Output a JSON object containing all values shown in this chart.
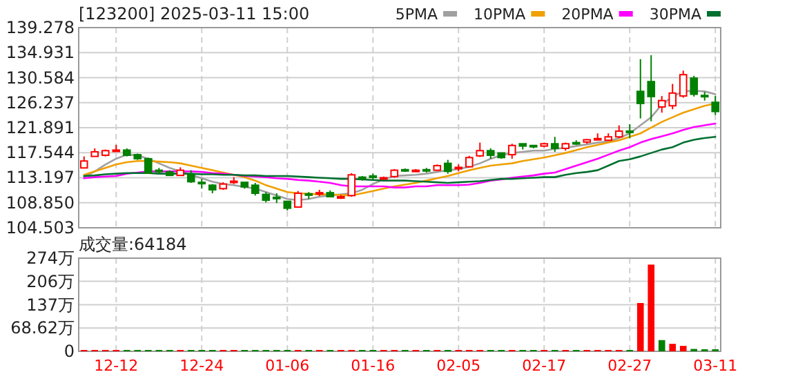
{
  "chart_data": [
    {
      "type": "candlestick",
      "title": "[123200] 2025-03-11 15:00",
      "legend": "top right",
      "tick_labels": "y",
      "grid": true,
      "categories": [
        null,
        null,
        null,
        null,
        null,
        null,
        null,
        null,
        null,
        null,
        null,
        null,
        null,
        null,
        null,
        null,
        null,
        null,
        null,
        null,
        null,
        null,
        null,
        null,
        null,
        null,
        null,
        null,
        null,
        null,
        null,
        null,
        null,
        null,
        null,
        null,
        null,
        null,
        null,
        null,
        null,
        null,
        null,
        null,
        null,
        null,
        null,
        null,
        null,
        null,
        null,
        null,
        null,
        null,
        null,
        null,
        null,
        null,
        null,
        null
      ],
      "ohlc": [
        [
          114.9,
          116.9,
          114.9,
          116.1
        ],
        [
          116.9,
          118.3,
          116.9,
          117.7
        ],
        [
          117.1,
          118.1,
          116.9,
          117.9
        ],
        [
          117.8,
          118.9,
          117.8,
          118.0
        ],
        [
          118.0,
          118.3,
          116.9,
          117.1
        ],
        [
          117.2,
          117.4,
          116.3,
          116.5
        ],
        [
          116.5,
          116.7,
          113.9,
          114.0
        ],
        [
          114.5,
          114.9,
          113.9,
          114.3
        ],
        [
          114.2,
          114.5,
          113.5,
          113.6
        ],
        [
          113.6,
          115.0,
          113.5,
          114.5
        ],
        [
          113.7,
          114.5,
          112.3,
          112.5
        ],
        [
          112.4,
          113.0,
          111.3,
          112.3
        ],
        [
          111.9,
          112.1,
          110.5,
          111.1
        ],
        [
          111.3,
          112.4,
          111.1,
          112.1
        ],
        [
          112.4,
          113.3,
          112.1,
          112.6
        ],
        [
          112.4,
          112.4,
          111.3,
          111.6
        ],
        [
          111.9,
          112.3,
          110.1,
          110.5
        ],
        [
          110.3,
          110.7,
          108.9,
          109.3
        ],
        [
          109.8,
          110.5,
          108.8,
          109.6
        ],
        [
          109.1,
          109.1,
          107.5,
          107.9
        ],
        [
          108.1,
          110.9,
          108.1,
          110.5
        ],
        [
          110.4,
          110.7,
          109.5,
          110.3
        ],
        [
          110.5,
          111.1,
          110.0,
          110.6
        ],
        [
          110.6,
          111.0,
          109.8,
          109.9
        ],
        [
          109.8,
          110.2,
          109.5,
          109.9
        ],
        [
          110.1,
          114.0,
          109.9,
          113.7
        ],
        [
          113.3,
          113.5,
          112.7,
          113.2
        ],
        [
          113.5,
          113.9,
          112.7,
          113.4
        ],
        [
          113.1,
          113.4,
          112.9,
          113.2
        ],
        [
          113.4,
          114.7,
          113.2,
          114.5
        ],
        [
          114.6,
          114.8,
          114.2,
          114.5
        ],
        [
          114.4,
          114.7,
          114.2,
          114.5
        ],
        [
          114.6,
          114.9,
          114.1,
          114.5
        ],
        [
          114.5,
          115.5,
          114.4,
          115.3
        ],
        [
          115.7,
          116.3,
          113.9,
          114.3
        ],
        [
          114.9,
          115.5,
          114.3,
          115.0
        ],
        [
          115.1,
          117.0,
          115.0,
          116.7
        ],
        [
          117.0,
          119.3,
          116.8,
          117.9
        ],
        [
          117.9,
          118.3,
          116.5,
          117.1
        ],
        [
          117.5,
          117.5,
          116.5,
          116.7
        ],
        [
          117.2,
          119.1,
          116.5,
          118.8
        ],
        [
          119.1,
          119.1,
          118.1,
          118.7
        ],
        [
          118.8,
          118.9,
          118.3,
          118.7
        ],
        [
          118.7,
          119.3,
          118.5,
          119.1
        ],
        [
          119.1,
          120.3,
          117.7,
          118.3
        ],
        [
          118.3,
          119.3,
          117.9,
          119.1
        ],
        [
          119.3,
          119.7,
          118.9,
          119.2
        ],
        [
          119.4,
          119.9,
          119.1,
          119.8
        ],
        [
          119.9,
          120.9,
          119.9,
          120.0
        ],
        [
          119.7,
          120.9,
          119.7,
          120.3
        ],
        [
          120.3,
          122.3,
          120.1,
          121.3
        ],
        [
          121.3,
          122.5,
          120.1,
          121.2
        ],
        [
          128.2,
          133.8,
          123.5,
          126.1
        ],
        [
          129.9,
          134.5,
          123.0,
          127.3
        ],
        [
          125.5,
          127.4,
          124.5,
          126.6
        ],
        [
          125.7,
          129.5,
          125.1,
          127.9
        ],
        [
          127.4,
          131.8,
          127.1,
          131.1
        ],
        [
          130.5,
          130.9,
          127.3,
          127.7
        ],
        [
          127.5,
          128.1,
          126.6,
          127.4
        ],
        [
          126.3,
          127.4,
          124.1,
          124.7
        ]
      ],
      "colors": [
        "#ff0000",
        "#ff0000",
        "#ff0000",
        "#ff0000",
        "#008000",
        "#008000",
        "#008000",
        "#008000",
        "#008000",
        "#ff0000",
        "#008000",
        "#008000",
        "#008000",
        "#ff0000",
        "#ff0000",
        "#008000",
        "#008000",
        "#008000",
        "#008000",
        "#008000",
        "#ff0000",
        "#008000",
        "#ff0000",
        "#008000",
        "#ff0000",
        "#ff0000",
        "#008000",
        "#008000",
        "#ff0000",
        "#ff0000",
        "#008000",
        "#ff0000",
        "#008000",
        "#ff0000",
        "#008000",
        "#ff0000",
        "#ff0000",
        "#ff0000",
        "#008000",
        "#008000",
        "#ff0000",
        "#008000",
        "#008000",
        "#ff0000",
        "#008000",
        "#ff0000",
        "#008000",
        "#ff0000",
        "#ff0000",
        "#ff0000",
        "#ff0000",
        "#008000",
        "#008000",
        "#008000",
        "#ff0000",
        "#ff0000",
        "#ff0000",
        "#008000",
        "#008000",
        "#008000"
      ],
      "series": [
        {
          "name": "5PMA",
          "type": "line",
          "color": "#a0a0a0",
          "values": [
            113.3,
            114.3,
            115.5,
            116.5,
            117.2,
            117.1,
            116.5,
            115.7,
            114.9,
            114.3,
            113.7,
            113.1,
            112.5,
            112.1,
            111.9,
            111.6,
            111.3,
            110.7,
            110.1,
            109.5,
            109.3,
            109.5,
            109.9,
            110.1,
            110.3,
            110.5,
            111.1,
            112.1,
            112.9,
            113.5,
            113.6,
            113.7,
            113.9,
            114.2,
            114.5,
            114.7,
            115.1,
            115.7,
            116.5,
            117.1,
            117.5,
            117.7,
            117.9,
            117.9,
            118.2,
            118.4,
            118.7,
            119.0,
            119.3,
            119.5,
            120.1,
            120.9,
            122.3,
            123.7,
            125.9,
            127.3,
            128.2,
            128.3,
            128.2,
            127.7
          ]
        },
        {
          "name": "10PMA",
          "type": "line",
          "color": "#f0a000",
          "values": [
            113.7,
            114.3,
            114.9,
            115.5,
            115.9,
            116.1,
            116.1,
            116.0,
            115.9,
            115.7,
            115.3,
            114.9,
            114.5,
            114.1,
            113.7,
            113.3,
            112.7,
            111.9,
            111.3,
            110.7,
            110.5,
            110.4,
            110.3,
            110.3,
            110.2,
            110.1,
            110.5,
            110.9,
            111.3,
            111.7,
            112.0,
            112.3,
            112.7,
            113.1,
            113.5,
            114.0,
            114.5,
            114.9,
            115.3,
            115.5,
            115.7,
            116.1,
            116.4,
            116.7,
            117.1,
            117.5,
            118.0,
            118.5,
            118.9,
            119.3,
            119.7,
            120.3,
            120.9,
            121.9,
            122.9,
            123.7,
            124.5,
            125.1,
            125.7,
            126.1
          ]
        },
        {
          "name": "20PMA",
          "type": "line",
          "color": "#ff00ff",
          "values": [
            113.1,
            113.3,
            113.4,
            113.5,
            113.9,
            114.1,
            114.3,
            114.3,
            114.3,
            114.3,
            114.3,
            114.2,
            114.0,
            113.9,
            113.7,
            113.5,
            113.4,
            113.3,
            113.1,
            113.0,
            112.8,
            112.7,
            112.5,
            112.3,
            111.9,
            111.7,
            111.7,
            111.7,
            111.7,
            111.5,
            111.5,
            111.7,
            111.7,
            111.9,
            111.9,
            111.9,
            112.0,
            112.3,
            112.7,
            112.9,
            113.2,
            113.4,
            113.6,
            113.9,
            114.1,
            114.7,
            115.3,
            115.9,
            116.5,
            117.2,
            117.9,
            118.5,
            119.3,
            119.9,
            120.4,
            120.9,
            121.5,
            122.0,
            122.3,
            122.6
          ]
        },
        {
          "name": "30PMA",
          "type": "line",
          "color": "#007030",
          "values": [
            113.5,
            113.6,
            113.8,
            113.9,
            114.0,
            114.0,
            114.0,
            113.9,
            113.9,
            113.9,
            113.9,
            113.8,
            113.8,
            113.7,
            113.7,
            113.6,
            113.6,
            113.5,
            113.5,
            113.5,
            113.4,
            113.3,
            113.2,
            113.1,
            113.0,
            113.0,
            112.9,
            112.8,
            112.7,
            112.7,
            112.7,
            112.6,
            112.5,
            112.4,
            112.3,
            112.4,
            112.5,
            112.6,
            112.8,
            113.0,
            113.0,
            113.1,
            113.2,
            113.3,
            113.3,
            113.7,
            114.0,
            114.2,
            114.5,
            115.3,
            116.1,
            116.4,
            116.9,
            117.5,
            118.1,
            118.5,
            119.3,
            119.8,
            120.1,
            120.3
          ]
        }
      ],
      "ylim": [
        104.503,
        139.278
      ],
      "yticks": [
        104.503,
        {
          "value": 108.85,
          "label": "108.850"
        },
        113.197,
        117.544,
        121.891,
        126.237,
        130.584,
        134.931,
        139.278
      ]
    },
    {
      "type": "bar",
      "title": "成交量:64184",
      "grid": true,
      "categories": [
        null,
        null,
        null,
        "12-12",
        null,
        null,
        null,
        null,
        null,
        null,
        null,
        "12-24",
        null,
        null,
        null,
        null,
        null,
        null,
        null,
        "01-06",
        null,
        null,
        null,
        null,
        null,
        null,
        null,
        "01-16",
        null,
        null,
        null,
        null,
        null,
        null,
        null,
        "02-05",
        null,
        null,
        null,
        null,
        null,
        null,
        null,
        "02-17",
        null,
        null,
        null,
        null,
        null,
        null,
        null,
        "02-27",
        null,
        null,
        null,
        null,
        null,
        null,
        null,
        "03-11"
      ],
      "values": [
        4,
        4,
        4,
        4,
        4,
        4,
        4,
        4,
        4,
        4,
        4,
        4,
        4,
        4,
        4,
        4,
        4,
        4,
        4,
        4,
        4,
        4,
        4,
        4,
        4,
        4,
        4,
        4,
        4,
        4,
        4,
        4,
        4,
        4,
        4,
        4,
        4,
        4,
        4,
        4,
        4,
        4,
        4,
        4,
        4,
        4,
        4,
        4,
        4,
        4,
        4,
        4,
        142,
        255,
        33,
        22,
        16,
        7,
        6,
        6
      ],
      "colors": [
        "#ff0000",
        "#ff0000",
        "#ff0000",
        "#ff0000",
        "#008000",
        "#008000",
        "#008000",
        "#008000",
        "#008000",
        "#ff0000",
        "#008000",
        "#008000",
        "#008000",
        "#ff0000",
        "#ff0000",
        "#008000",
        "#008000",
        "#008000",
        "#008000",
        "#008000",
        "#ff0000",
        "#008000",
        "#ff0000",
        "#008000",
        "#ff0000",
        "#ff0000",
        "#008000",
        "#008000",
        "#ff0000",
        "#ff0000",
        "#008000",
        "#ff0000",
        "#008000",
        "#ff0000",
        "#008000",
        "#ff0000",
        "#ff0000",
        "#ff0000",
        "#008000",
        "#008000",
        "#ff0000",
        "#008000",
        "#008000",
        "#ff0000",
        "#008000",
        "#ff0000",
        "#008000",
        "#ff0000",
        "#ff0000",
        "#ff0000",
        "#ff0000",
        "#008000",
        "#ff0000",
        "#ff0000",
        "#008000",
        "#ff0000",
        "#ff0000",
        "#008000",
        "#008000",
        "#008000"
      ],
      "ylim": [
        0,
        274
      ],
      "yticks": [
        0,
        {
          "value": 68.62,
          "label": "68.62万"
        },
        {
          "value": 137,
          "label": "137万"
        },
        {
          "value": 206,
          "label": "206万"
        },
        {
          "value": 274,
          "label": "274万"
        }
      ]
    }
  ]
}
